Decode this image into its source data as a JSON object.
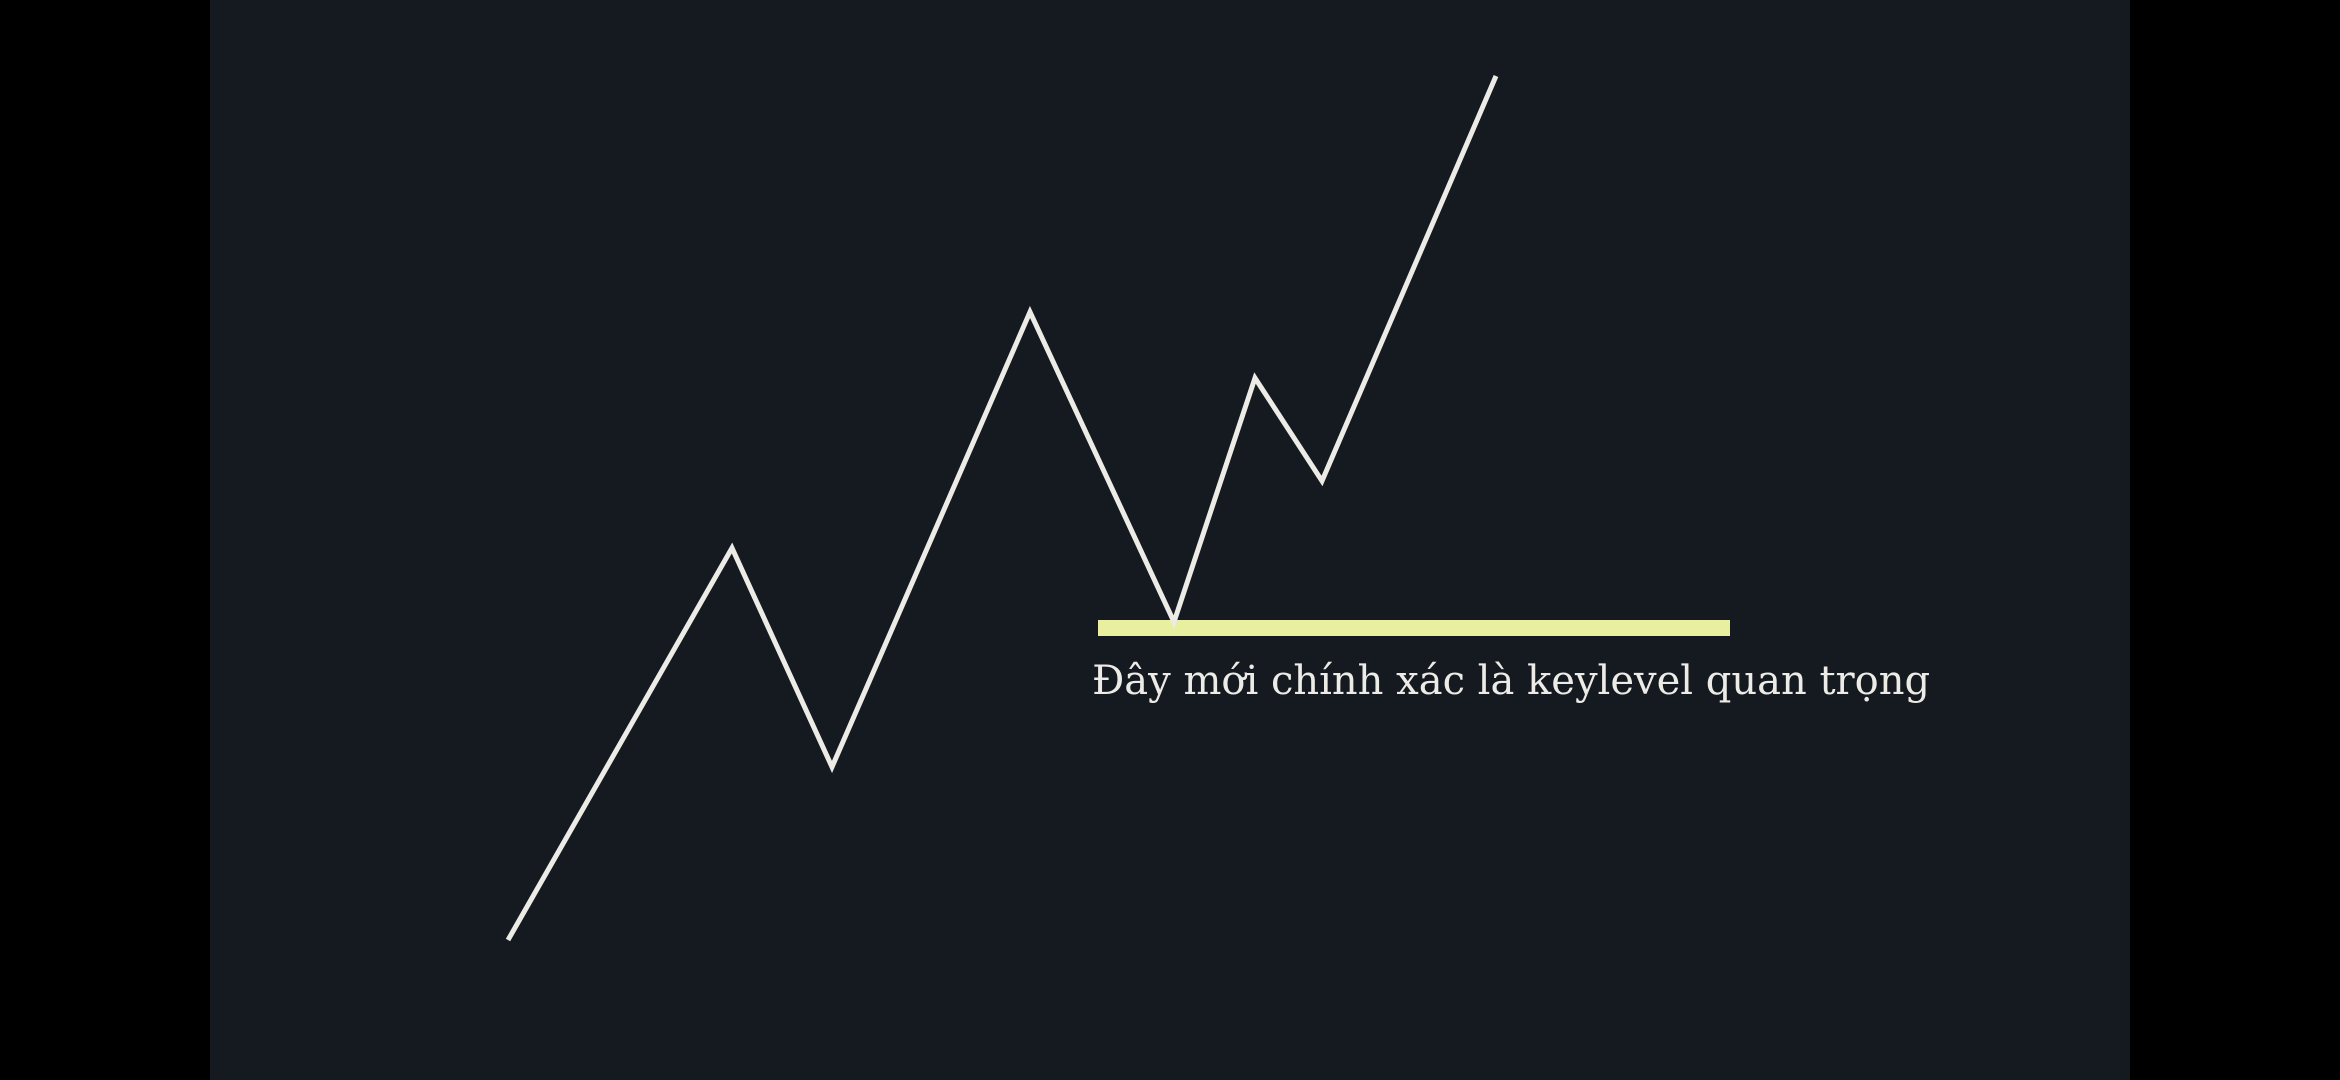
{
  "diagram": {
    "title": "",
    "annotation": "Đây mới chính xác là keylevel quan trọng",
    "colors": {
      "background": "#151a21",
      "price_line": "#ecebe6",
      "key_level": "#e8f0a0",
      "annotation": "#ecebe6"
    },
    "price_path": {
      "description_points": [
        "start",
        "high-1",
        "low-1",
        "high-2",
        "key-low",
        "high-3",
        "low-3",
        "end"
      ]
    }
  }
}
